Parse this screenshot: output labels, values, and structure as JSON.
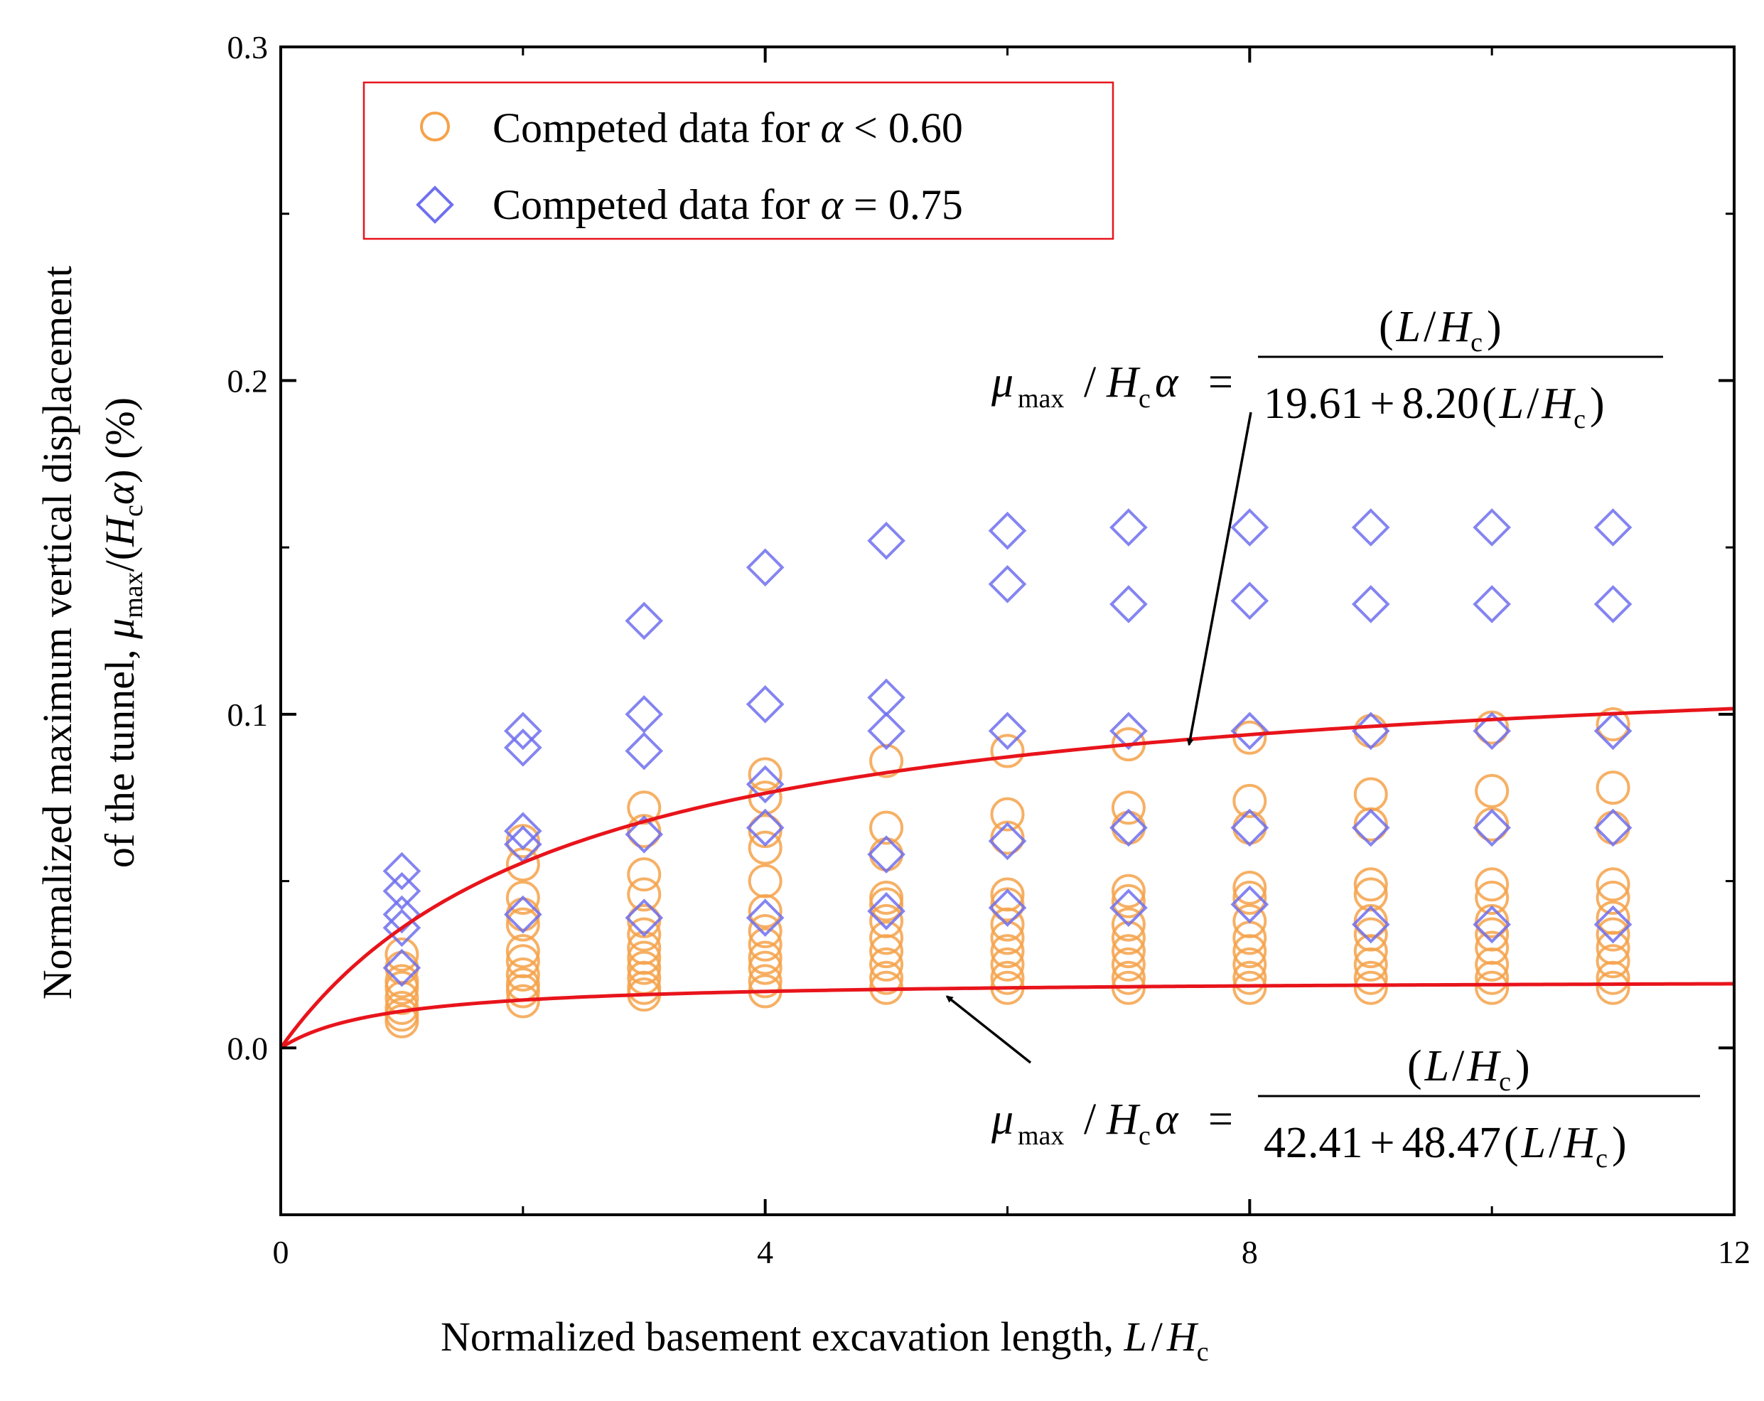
{
  "chart_data": {
    "type": "scatter",
    "x_axis": {
      "label": "Normalized basement excavation length, ",
      "label_var": "L",
      "label_sep": "/",
      "label_var2": "H",
      "label_sub": "c",
      "range": [
        0,
        12
      ],
      "ticks": [
        0,
        4,
        8,
        12
      ],
      "tick_labels": [
        "0",
        "4",
        "8",
        "12"
      ]
    },
    "y_axis": {
      "label_line1": "Normalized maximum vertical displacement",
      "label_line2_prefix": "of the tunnel, ",
      "label_mu": "μ",
      "label_mu_sub": "max",
      "label_mid": "/(",
      "label_H": "H",
      "label_H_sub": "c",
      "label_alpha": "α",
      "label_suffix": ") (%)",
      "range": [
        -0.05,
        0.3
      ],
      "ticks": [
        0.0,
        0.1,
        0.2,
        0.3
      ],
      "tick_labels": [
        "0.0",
        "0.1",
        "0.2",
        "0.3"
      ]
    },
    "legend": {
      "position": "top-left",
      "entries": [
        {
          "prefix": "Competed data for ",
          "var": "α",
          "rel": " < 0.60"
        },
        {
          "prefix": "Competed data for ",
          "var": "α",
          "rel": " = 0.75"
        }
      ]
    },
    "series": [
      {
        "name": "Competed data for α < 0.60",
        "marker": "circle",
        "color": "#F5A24A",
        "points": [
          [
            1,
            0.008
          ],
          [
            1,
            0.01
          ],
          [
            1,
            0.012
          ],
          [
            1,
            0.015
          ],
          [
            1,
            0.018
          ],
          [
            1,
            0.02
          ],
          [
            1,
            0.024
          ],
          [
            1,
            0.028
          ],
          [
            2,
            0.014
          ],
          [
            2,
            0.017
          ],
          [
            2,
            0.019
          ],
          [
            2,
            0.022
          ],
          [
            2,
            0.026
          ],
          [
            2,
            0.029
          ],
          [
            2,
            0.037
          ],
          [
            2,
            0.04
          ],
          [
            2,
            0.045
          ],
          [
            2,
            0.055
          ],
          [
            2,
            0.062
          ],
          [
            3,
            0.016
          ],
          [
            3,
            0.018
          ],
          [
            3,
            0.021
          ],
          [
            3,
            0.024
          ],
          [
            3,
            0.027
          ],
          [
            3,
            0.03
          ],
          [
            3,
            0.034
          ],
          [
            3,
            0.038
          ],
          [
            3,
            0.046
          ],
          [
            3,
            0.052
          ],
          [
            3,
            0.065
          ],
          [
            3,
            0.072
          ],
          [
            4,
            0.017
          ],
          [
            4,
            0.02
          ],
          [
            4,
            0.024
          ],
          [
            4,
            0.027
          ],
          [
            4,
            0.031
          ],
          [
            4,
            0.035
          ],
          [
            4,
            0.041
          ],
          [
            4,
            0.05
          ],
          [
            4,
            0.06
          ],
          [
            4,
            0.065
          ],
          [
            4,
            0.075
          ],
          [
            4,
            0.082
          ],
          [
            5,
            0.018
          ],
          [
            5,
            0.021
          ],
          [
            5,
            0.025
          ],
          [
            5,
            0.029
          ],
          [
            5,
            0.033
          ],
          [
            5,
            0.038
          ],
          [
            5,
            0.043
          ],
          [
            5,
            0.045
          ],
          [
            5,
            0.058
          ],
          [
            5,
            0.066
          ],
          [
            5,
            0.086
          ],
          [
            6,
            0.018
          ],
          [
            6,
            0.021
          ],
          [
            6,
            0.025
          ],
          [
            6,
            0.029
          ],
          [
            6,
            0.033
          ],
          [
            6,
            0.037
          ],
          [
            6,
            0.043
          ],
          [
            6,
            0.046
          ],
          [
            6,
            0.063
          ],
          [
            6,
            0.07
          ],
          [
            6,
            0.089
          ],
          [
            7,
            0.018
          ],
          [
            7,
            0.021
          ],
          [
            7,
            0.025
          ],
          [
            7,
            0.029
          ],
          [
            7,
            0.033
          ],
          [
            7,
            0.037
          ],
          [
            7,
            0.044
          ],
          [
            7,
            0.047
          ],
          [
            7,
            0.066
          ],
          [
            7,
            0.072
          ],
          [
            7,
            0.091
          ],
          [
            8,
            0.018
          ],
          [
            8,
            0.021
          ],
          [
            8,
            0.025
          ],
          [
            8,
            0.029
          ],
          [
            8,
            0.033
          ],
          [
            8,
            0.038
          ],
          [
            8,
            0.045
          ],
          [
            8,
            0.048
          ],
          [
            8,
            0.066
          ],
          [
            8,
            0.074
          ],
          [
            8,
            0.093
          ],
          [
            9,
            0.018
          ],
          [
            9,
            0.021
          ],
          [
            9,
            0.025
          ],
          [
            9,
            0.029
          ],
          [
            9,
            0.034
          ],
          [
            9,
            0.038
          ],
          [
            9,
            0.046
          ],
          [
            9,
            0.049
          ],
          [
            9,
            0.067
          ],
          [
            9,
            0.076
          ],
          [
            9,
            0.095
          ],
          [
            10,
            0.018
          ],
          [
            10,
            0.021
          ],
          [
            10,
            0.025
          ],
          [
            10,
            0.03
          ],
          [
            10,
            0.034
          ],
          [
            10,
            0.038
          ],
          [
            10,
            0.045
          ],
          [
            10,
            0.049
          ],
          [
            10,
            0.067
          ],
          [
            10,
            0.077
          ],
          [
            10,
            0.096
          ],
          [
            11,
            0.018
          ],
          [
            11,
            0.021
          ],
          [
            11,
            0.026
          ],
          [
            11,
            0.03
          ],
          [
            11,
            0.034
          ],
          [
            11,
            0.039
          ],
          [
            11,
            0.045
          ],
          [
            11,
            0.049
          ],
          [
            11,
            0.066
          ],
          [
            11,
            0.078
          ],
          [
            11,
            0.097
          ]
        ]
      },
      {
        "name": "Competed data for α = 0.75",
        "marker": "diamond",
        "color": "#6F6FEF",
        "points": [
          [
            1,
            0.024
          ],
          [
            1,
            0.036
          ],
          [
            1,
            0.04
          ],
          [
            1,
            0.047
          ],
          [
            1,
            0.053
          ],
          [
            2,
            0.04
          ],
          [
            2,
            0.061
          ],
          [
            2,
            0.065
          ],
          [
            2,
            0.09
          ],
          [
            2,
            0.095
          ],
          [
            3,
            0.039
          ],
          [
            3,
            0.064
          ],
          [
            3,
            0.089
          ],
          [
            3,
            0.1
          ],
          [
            3,
            0.128
          ],
          [
            4,
            0.039
          ],
          [
            4,
            0.066
          ],
          [
            4,
            0.079
          ],
          [
            4,
            0.103
          ],
          [
            4,
            0.144
          ],
          [
            5,
            0.041
          ],
          [
            5,
            0.058
          ],
          [
            5,
            0.095
          ],
          [
            5,
            0.105
          ],
          [
            5,
            0.152
          ],
          [
            6,
            0.042
          ],
          [
            6,
            0.062
          ],
          [
            6,
            0.095
          ],
          [
            6,
            0.139
          ],
          [
            6,
            0.155
          ],
          [
            7,
            0.042
          ],
          [
            7,
            0.066
          ],
          [
            7,
            0.095
          ],
          [
            7,
            0.133
          ],
          [
            7,
            0.156
          ],
          [
            8,
            0.043
          ],
          [
            8,
            0.066
          ],
          [
            8,
            0.095
          ],
          [
            8,
            0.134
          ],
          [
            8,
            0.156
          ],
          [
            9,
            0.037
          ],
          [
            9,
            0.066
          ],
          [
            9,
            0.095
          ],
          [
            9,
            0.133
          ],
          [
            9,
            0.156
          ],
          [
            10,
            0.037
          ],
          [
            10,
            0.066
          ],
          [
            10,
            0.095
          ],
          [
            10,
            0.133
          ],
          [
            10,
            0.156
          ],
          [
            11,
            0.037
          ],
          [
            11,
            0.066
          ],
          [
            11,
            0.095
          ],
          [
            11,
            0.133
          ],
          [
            11,
            0.156
          ]
        ]
      }
    ],
    "fit_curves": [
      {
        "name": "upper fit",
        "a": 19.61,
        "b": 8.2,
        "color": "#E8141B",
        "x_range": [
          0,
          12
        ]
      },
      {
        "name": "lower fit",
        "a": 42.41,
        "b": 48.47,
        "color": "#E8141B",
        "x_range": [
          0,
          12
        ]
      }
    ],
    "annotations": [
      {
        "lhs_mu": "μ",
        "lhs_mu_sub": "max",
        "lhs_mid": "/",
        "lhs_H": "H",
        "lhs_H_sub": "c",
        "lhs_alpha": "α",
        "eq_sign": "=",
        "numerator": {
          "open": "(",
          "L": "L",
          "sep": "/",
          "H": "H",
          "sub": "c",
          "close": ")"
        },
        "denominator": {
          "const": "19.61",
          "plus": "+",
          "coef": "8.20",
          "open": "(",
          "L": "L",
          "sep": "/",
          "H": "H",
          "sub": "c",
          "close": ")"
        },
        "arrow_to": [
          7.5,
          0.093
        ]
      },
      {
        "lhs_mu": "μ",
        "lhs_mu_sub": "max",
        "lhs_mid": "/",
        "lhs_H": "H",
        "lhs_H_sub": "c",
        "lhs_alpha": "α",
        "eq_sign": "=",
        "numerator": {
          "open": "(",
          "L": "L",
          "sep": "/",
          "H": "H",
          "sub": "c",
          "close": ")"
        },
        "denominator": {
          "const": "42.41",
          "plus": "+",
          "coef": "48.47",
          "open": "(",
          "L": "L",
          "sep": "/",
          "H": "H",
          "sub": "c",
          "close": ")"
        },
        "arrow_to": [
          5.5,
          0.018
        ]
      }
    ],
    "colors": {
      "axis": "#000000",
      "legend_border": "#E8141B",
      "arrow": "#000000"
    }
  }
}
